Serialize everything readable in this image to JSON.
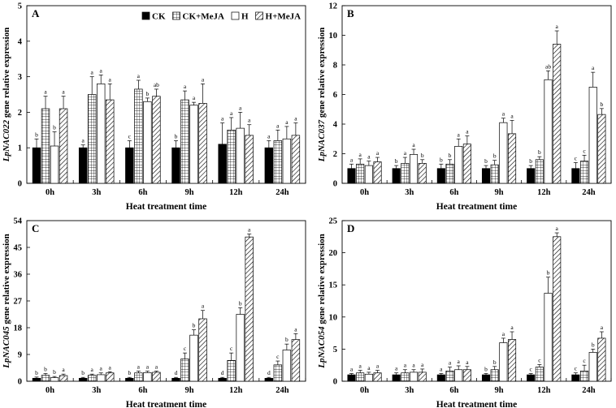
{
  "figure": {
    "x_axis_title": "Heat treatment time"
  },
  "legend": [
    {
      "key": "CK",
      "label": "CK"
    },
    {
      "key": "CKM",
      "label": "CK+MeJA"
    },
    {
      "key": "H",
      "label": "H"
    },
    {
      "key": "HM",
      "label": "H+MeJA"
    }
  ],
  "chart_data": [
    {
      "panel": "A",
      "type": "bar",
      "title": "",
      "ylabel_italic": "LpNAC022",
      "ylabel_rest": " gene relative expression",
      "xlabel": "Heat treatment time",
      "categories": [
        "0h",
        "3h",
        "6h",
        "9h",
        "12h",
        "24h"
      ],
      "ylim": [
        0,
        5
      ],
      "yticks": [
        0,
        1,
        2,
        3,
        4,
        5
      ],
      "series": [
        {
          "name": "CK",
          "values": [
            1.0,
            1.0,
            1.0,
            1.0,
            1.1,
            1.0
          ],
          "errors": [
            0.25,
            0.08,
            0.2,
            0.2,
            0.6,
            0.2
          ],
          "letters": [
            "b",
            "a",
            "c",
            "b",
            "a",
            "a"
          ]
        },
        {
          "name": "CK+MeJA",
          "values": [
            2.1,
            2.5,
            2.65,
            2.35,
            1.5,
            1.2
          ],
          "errors": [
            0.35,
            0.5,
            0.25,
            0.25,
            0.35,
            0.3
          ],
          "letters": [
            "a",
            "a",
            "a",
            "a",
            "a",
            "a"
          ]
        },
        {
          "name": "H",
          "values": [
            1.05,
            2.8,
            2.3,
            2.2,
            1.55,
            1.25
          ],
          "errors": [
            0.4,
            0.25,
            0.1,
            0.08,
            0.45,
            0.35
          ],
          "letters": [
            "b",
            "a",
            "b",
            "a",
            "a",
            "a"
          ]
        },
        {
          "name": "H+MeJA",
          "values": [
            2.1,
            2.35,
            2.45,
            2.25,
            1.35,
            1.35
          ],
          "errors": [
            0.35,
            0.45,
            0.2,
            0.55,
            0.3,
            0.35
          ],
          "letters": [
            "a",
            "a",
            "ab",
            "a",
            "a",
            "a"
          ]
        }
      ]
    },
    {
      "panel": "B",
      "type": "bar",
      "title": "",
      "ylabel_italic": "LpNAC037",
      "ylabel_rest": " gene relative expression",
      "xlabel": "Heat treatment time",
      "categories": [
        "0h",
        "3h",
        "6h",
        "9h",
        "12h",
        "24h"
      ],
      "ylim": [
        0,
        12
      ],
      "yticks": [
        0,
        2,
        4,
        6,
        8,
        10,
        12
      ],
      "series": [
        {
          "name": "CK",
          "values": [
            1.0,
            1.0,
            1.0,
            1.0,
            1.0,
            1.0
          ],
          "errors": [
            0.3,
            0.2,
            0.3,
            0.2,
            0.2,
            0.4
          ],
          "letters": [
            "a",
            "b",
            "b",
            "b",
            "b",
            "c"
          ]
        },
        {
          "name": "CK+MeJA",
          "values": [
            1.3,
            1.35,
            1.3,
            1.25,
            1.6,
            1.5
          ],
          "errors": [
            0.35,
            0.4,
            0.3,
            0.3,
            0.2,
            0.4
          ],
          "letters": [
            "a",
            "a",
            "b",
            "b",
            "b",
            "c"
          ]
        },
        {
          "name": "H",
          "values": [
            1.2,
            1.95,
            2.5,
            4.1,
            7.0,
            6.5
          ],
          "errors": [
            0.3,
            0.35,
            0.5,
            0.3,
            0.6,
            1.0
          ],
          "letters": [
            "a",
            "a",
            "a",
            "a",
            "ab",
            "a"
          ]
        },
        {
          "name": "H+MeJA",
          "values": [
            1.45,
            1.35,
            2.65,
            3.35,
            9.4,
            4.65
          ],
          "errors": [
            0.3,
            0.25,
            0.55,
            0.9,
            0.9,
            0.4
          ],
          "letters": [
            "a",
            "b",
            "a",
            "a",
            "a",
            "b"
          ]
        }
      ]
    },
    {
      "panel": "C",
      "type": "bar",
      "title": "",
      "ylabel_italic": "LpNAC045",
      "ylabel_rest": " gene relative expression",
      "xlabel": "Heat treatment time",
      "categories": [
        "0h",
        "3h",
        "6h",
        "9h",
        "12h",
        "24h"
      ],
      "ylim": [
        0,
        54
      ],
      "yticks": [
        0,
        9,
        18,
        27,
        36,
        45,
        54
      ],
      "series": [
        {
          "name": "CK",
          "values": [
            1.0,
            1.0,
            1.0,
            1.0,
            1.0,
            1.0
          ],
          "errors": [
            0.4,
            0.3,
            0.3,
            0.3,
            0.3,
            0.3
          ],
          "letters": [
            "b",
            "b",
            "b",
            "d",
            "d",
            "d"
          ]
        },
        {
          "name": "CK+MeJA",
          "values": [
            2.0,
            2.0,
            2.8,
            7.5,
            7.0,
            5.5
          ],
          "errors": [
            0.6,
            0.4,
            0.6,
            2.0,
            2.5,
            1.3
          ],
          "letters": [
            "b",
            "a",
            "a",
            "c",
            "c",
            "c"
          ]
        },
        {
          "name": "H",
          "values": [
            1.2,
            2.2,
            2.9,
            15.5,
            22.5,
            10.5
          ],
          "errors": [
            0.4,
            0.6,
            0.5,
            1.8,
            2.2,
            2.0
          ],
          "letters": [
            "b",
            "a",
            "a",
            "b",
            "b",
            "b"
          ]
        },
        {
          "name": "H+MeJA",
          "values": [
            1.9,
            2.8,
            3.0,
            21.0,
            48.5,
            14.0
          ],
          "errors": [
            0.5,
            0.4,
            0.4,
            2.8,
            1.0,
            2.0
          ],
          "letters": [
            "a",
            "a",
            "a",
            "a",
            "a",
            "a"
          ]
        }
      ]
    },
    {
      "panel": "D",
      "type": "bar",
      "title": "",
      "ylabel_italic": "LpNAC054",
      "ylabel_rest": " gene relative expression",
      "xlabel": "Heat treatment time",
      "categories": [
        "0h",
        "3h",
        "6h",
        "9h",
        "12h",
        "24h"
      ],
      "ylim": [
        0,
        25
      ],
      "yticks": [
        0,
        5,
        10,
        15,
        20,
        25
      ],
      "series": [
        {
          "name": "CK",
          "values": [
            1.0,
            1.0,
            1.0,
            1.0,
            1.0,
            1.0
          ],
          "errors": [
            0.2,
            0.3,
            0.2,
            0.2,
            0.2,
            0.3
          ],
          "letters": [
            "a",
            "a",
            "a",
            "b",
            "c",
            "c"
          ]
        },
        {
          "name": "CK+MeJA",
          "values": [
            1.3,
            1.3,
            1.6,
            1.8,
            2.2,
            1.6
          ],
          "errors": [
            0.4,
            0.5,
            0.6,
            0.5,
            0.4,
            0.9
          ],
          "letters": [
            "a",
            "a",
            "a",
            "b",
            "c",
            "c"
          ]
        },
        {
          "name": "H",
          "values": [
            1.1,
            1.4,
            1.8,
            6.0,
            13.7,
            4.5
          ],
          "errors": [
            0.3,
            0.4,
            0.6,
            0.7,
            2.5,
            0.5
          ],
          "letters": [
            "a",
            "a",
            "a",
            "a",
            "b",
            "b"
          ]
        },
        {
          "name": "H+MeJA",
          "values": [
            1.3,
            1.4,
            1.8,
            6.5,
            22.5,
            6.7
          ],
          "errors": [
            0.4,
            0.5,
            0.5,
            1.2,
            0.6,
            1.0
          ],
          "letters": [
            "a",
            "a",
            "a",
            "a",
            "a",
            "a"
          ]
        }
      ]
    }
  ]
}
